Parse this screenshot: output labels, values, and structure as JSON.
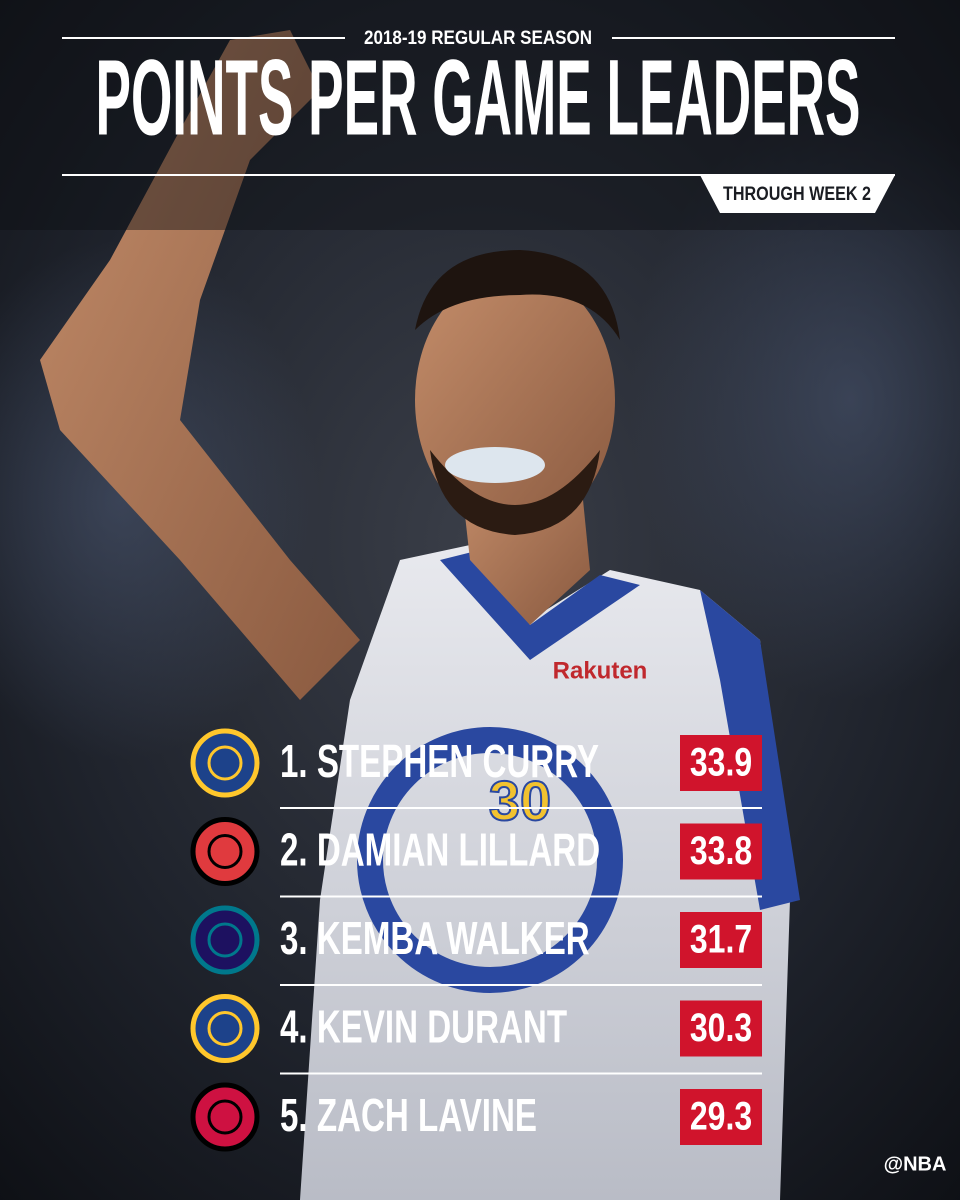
{
  "header": {
    "season": "2018-19 REGULAR SEASON",
    "title": "POINTS PER GAME LEADERS",
    "badge": "THROUGH WEEK 2"
  },
  "photo": {
    "sponsor": "Rakuten",
    "number": "30"
  },
  "rows": [
    {
      "player": "1. STEPHEN CURRY",
      "value": "33.9",
      "team_color": "#1d428a",
      "team_accent": "#ffc72c"
    },
    {
      "player": "2. DAMIAN LILLARD",
      "value": "33.8",
      "team_color": "#e03a3e",
      "team_accent": "#000000"
    },
    {
      "player": "3. KEMBA WALKER",
      "value": "31.7",
      "team_color": "#1d1160",
      "team_accent": "#00788c"
    },
    {
      "player": "4. KEVIN DURANT",
      "value": "30.3",
      "team_color": "#1d428a",
      "team_accent": "#ffc72c"
    },
    {
      "player": "5. ZACH LAVINE",
      "value": "29.3",
      "team_color": "#ce1141",
      "team_accent": "#000000"
    }
  ],
  "footer": {
    "handle": "@NBA"
  }
}
